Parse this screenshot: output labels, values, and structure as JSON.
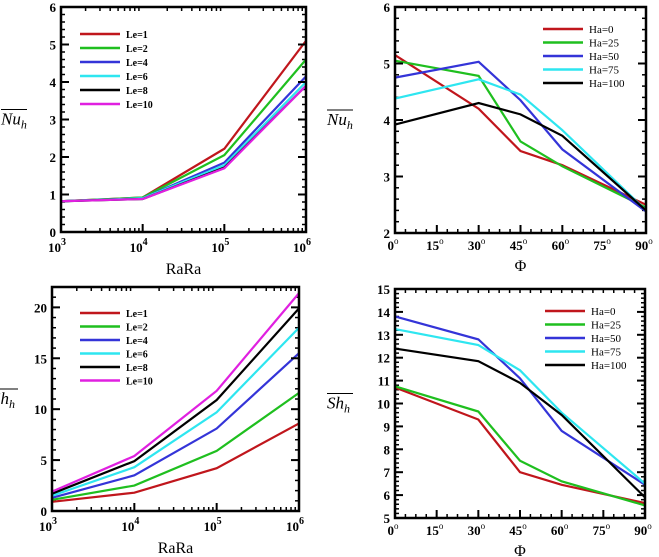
{
  "chart_data": [
    {
      "type": "line",
      "ylabel": "Nu_h",
      "xlabel": "RaRa",
      "xscale": "log",
      "x": [
        1000,
        10000,
        100000,
        1000000
      ],
      "xticks": [
        "3",
        "4",
        "5",
        "6"
      ],
      "ylim": [
        0,
        6
      ],
      "yticks": [
        0,
        1,
        2,
        3,
        4,
        5,
        6
      ],
      "legend": "top-left",
      "series": [
        {
          "name": "Le=1",
          "color": "#c0161c",
          "values": [
            0.82,
            0.92,
            2.22,
            5.1
          ]
        },
        {
          "name": "Le=2",
          "color": "#1fbf1f",
          "values": [
            0.82,
            0.92,
            2.05,
            4.6
          ]
        },
        {
          "name": "Le=4",
          "color": "#3434d8",
          "values": [
            0.82,
            0.9,
            1.85,
            4.15
          ]
        },
        {
          "name": "Le=6",
          "color": "#2ee6f0",
          "values": [
            0.82,
            0.9,
            1.78,
            4.0
          ]
        },
        {
          "name": "Le=8",
          "color": "#000000",
          "values": [
            0.82,
            0.88,
            1.72,
            3.9
          ]
        },
        {
          "name": "Le=10",
          "color": "#e020e0",
          "values": [
            0.82,
            0.88,
            1.7,
            3.9
          ]
        }
      ]
    },
    {
      "type": "line",
      "ylabel": "Nu_h",
      "xlabel": "Φ",
      "x": [
        0,
        30,
        45,
        60,
        90
      ],
      "xticks": [
        0,
        15,
        30,
        45,
        60,
        75,
        90
      ],
      "xlim": [
        0,
        90
      ],
      "ylim": [
        2,
        6
      ],
      "yticks": [
        2,
        3,
        4,
        5,
        6
      ],
      "legend": "top-right",
      "series": [
        {
          "name": "Ha=0",
          "color": "#c0161c",
          "values": [
            5.15,
            4.2,
            3.45,
            3.2,
            2.5
          ]
        },
        {
          "name": "Ha=25",
          "color": "#1fbf1f",
          "values": [
            5.05,
            4.78,
            3.62,
            3.18,
            2.45
          ]
        },
        {
          "name": "Ha=50",
          "color": "#3434d8",
          "values": [
            4.75,
            5.03,
            4.35,
            3.48,
            2.38
          ]
        },
        {
          "name": "Ha=75",
          "color": "#2ee6f0",
          "values": [
            4.38,
            4.72,
            4.45,
            3.82,
            2.4
          ]
        },
        {
          "name": "Ha=100",
          "color": "#000000",
          "values": [
            3.92,
            4.3,
            4.1,
            3.72,
            2.4
          ]
        }
      ]
    },
    {
      "type": "line",
      "ylabel": "Sh_h",
      "xlabel": "RaRa",
      "xscale": "log",
      "x": [
        1000,
        10000,
        100000,
        1000000
      ],
      "xticks": [
        "3",
        "4",
        "5",
        "6"
      ],
      "ylim": [
        0,
        22
      ],
      "yticks": [
        0,
        5,
        10,
        15,
        20
      ],
      "legend": "top-left",
      "series": [
        {
          "name": "Le=1",
          "color": "#c0161c",
          "values": [
            0.9,
            1.8,
            4.2,
            8.6
          ]
        },
        {
          "name": "Le=2",
          "color": "#1fbf1f",
          "values": [
            1.1,
            2.5,
            5.9,
            11.6
          ]
        },
        {
          "name": "Le=4",
          "color": "#3434d8",
          "values": [
            1.3,
            3.5,
            8.1,
            15.5
          ]
        },
        {
          "name": "Le=6",
          "color": "#2ee6f0",
          "values": [
            1.5,
            4.3,
            9.7,
            18.0
          ]
        },
        {
          "name": "Le=8",
          "color": "#000000",
          "values": [
            1.7,
            4.9,
            10.9,
            19.9
          ]
        },
        {
          "name": "Le=10",
          "color": "#e020e0",
          "values": [
            1.9,
            5.4,
            11.8,
            21.4
          ]
        }
      ]
    },
    {
      "type": "line",
      "ylabel": "Sh_h",
      "xlabel": "Φ",
      "x": [
        0,
        30,
        45,
        60,
        90
      ],
      "xticks": [
        0,
        15,
        30,
        45,
        60,
        75,
        90
      ],
      "xlim": [
        0,
        90
      ],
      "ylim": [
        5,
        15
      ],
      "yticks": [
        5,
        6,
        7,
        8,
        9,
        10,
        11,
        12,
        13,
        14,
        15
      ],
      "legend": "top-right",
      "series": [
        {
          "name": "Ha=0",
          "color": "#c0161c",
          "values": [
            10.7,
            9.3,
            7.0,
            6.45,
            5.65
          ]
        },
        {
          "name": "Ha=25",
          "color": "#1fbf1f",
          "values": [
            10.75,
            9.65,
            7.5,
            6.6,
            5.55
          ]
        },
        {
          "name": "Ha=50",
          "color": "#3434d8",
          "values": [
            13.8,
            12.8,
            11.1,
            8.8,
            6.45
          ]
        },
        {
          "name": "Ha=75",
          "color": "#2ee6f0",
          "values": [
            13.25,
            12.55,
            11.45,
            9.6,
            6.5
          ]
        },
        {
          "name": "Ha=100",
          "color": "#000000",
          "values": [
            12.4,
            11.85,
            10.9,
            9.5,
            5.9
          ]
        }
      ]
    }
  ]
}
